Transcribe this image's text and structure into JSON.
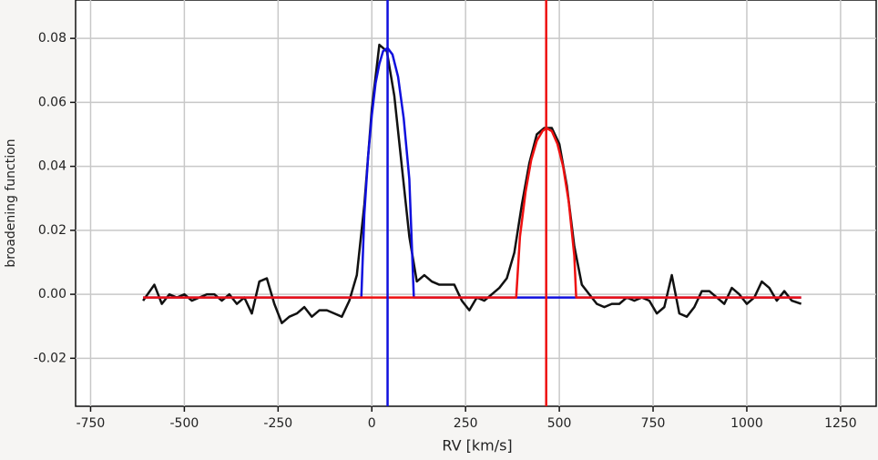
{
  "chart_data": {
    "type": "line",
    "xlabel": "RV [km/s]",
    "ylabel": "broadening function",
    "xlim": [
      -790,
      1345
    ],
    "ylim": [
      -0.035,
      0.092
    ],
    "xticks": [
      -750,
      -500,
      -250,
      0,
      250,
      500,
      750,
      1000,
      1250
    ],
    "yticks": [
      -0.02,
      {
        "value": 0,
        "label": "0.00"
      },
      0.02,
      0.04,
      0.06,
      0.08
    ],
    "grid": true,
    "series": [
      {
        "color": "#111111",
        "x": [
          -610,
          -580,
          -560,
          -540,
          -520,
          -500,
          -480,
          -460,
          -440,
          -420,
          -400,
          -380,
          -360,
          -340,
          -320,
          -300,
          -280,
          -260,
          -240,
          -220,
          -200,
          -180,
          -160,
          -140,
          -120,
          -100,
          -80,
          -60,
          -40,
          -20,
          0,
          20,
          40,
          60,
          80,
          100,
          120,
          140,
          160,
          180,
          200,
          220,
          240,
          260,
          280,
          300,
          320,
          340,
          360,
          380,
          400,
          420,
          440,
          460,
          480,
          500,
          520,
          540,
          560,
          580,
          600,
          620,
          640,
          660,
          680,
          700,
          720,
          740,
          760,
          780,
          800,
          820,
          840,
          860,
          880,
          900,
          920,
          940,
          960,
          980,
          1000,
          1020,
          1040,
          1060,
          1080,
          1100,
          1120,
          1145
        ],
        "values": [
          -0.002,
          0.003,
          -0.003,
          0.0,
          -0.001,
          0.0,
          -0.002,
          -0.001,
          0.0,
          0.0,
          -0.002,
          0.0,
          -0.003,
          -0.001,
          -0.006,
          0.004,
          0.005,
          -0.003,
          -0.009,
          -0.007,
          -0.006,
          -0.004,
          -0.007,
          -0.005,
          -0.005,
          -0.006,
          -0.007,
          -0.002,
          0.006,
          0.028,
          0.058,
          0.078,
          0.076,
          0.062,
          0.04,
          0.018,
          0.004,
          0.006,
          0.004,
          0.003,
          0.003,
          0.003,
          -0.002,
          -0.005,
          -0.001,
          -0.002,
          0.0,
          0.002,
          0.005,
          0.013,
          0.028,
          0.041,
          0.05,
          0.052,
          0.052,
          0.047,
          0.034,
          0.015,
          0.003,
          0.0,
          -0.003,
          -0.004,
          -0.003,
          -0.003,
          -0.001,
          -0.002,
          -0.001,
          -0.002,
          -0.006,
          -0.004,
          0.006,
          -0.006,
          -0.007,
          -0.004,
          0.001,
          0.001,
          -0.001,
          -0.003,
          0.002,
          0.0,
          -0.003,
          -0.001,
          0.004,
          0.002,
          -0.002,
          0.001,
          -0.002,
          -0.003
        ]
      },
      {
        "color": "#1010dd",
        "x": [
          -610,
          -28,
          -20,
          -10,
          0,
          10,
          20,
          30,
          42,
          55,
          70,
          85,
          100,
          112,
          1145
        ],
        "values": [
          -0.001,
          -0.001,
          0.025,
          0.043,
          0.056,
          0.066,
          0.072,
          0.076,
          0.077,
          0.075,
          0.068,
          0.055,
          0.036,
          -0.001,
          -0.001
        ]
      },
      {
        "color": "#ee1111",
        "x": [
          -610,
          385,
          395,
          410,
          425,
          440,
          455,
          465,
          480,
          495,
          510,
          525,
          540,
          545,
          1145
        ],
        "values": [
          -0.001,
          -0.001,
          0.018,
          0.032,
          0.042,
          0.048,
          0.051,
          0.052,
          0.051,
          0.047,
          0.04,
          0.029,
          0.012,
          -0.001,
          -0.001
        ]
      }
    ],
    "vlines": [
      {
        "x": 42,
        "color": "#1010dd"
      },
      {
        "x": 465,
        "color": "#ee1111"
      }
    ]
  }
}
